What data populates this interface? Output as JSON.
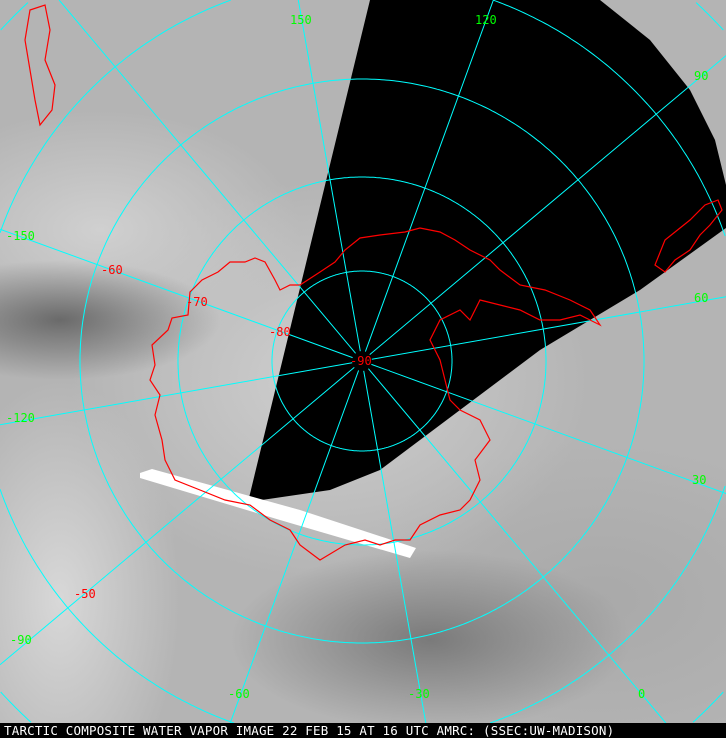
{
  "caption": "TARCTIC COMPOSITE WATER VAPOR IMAGE 22 FEB 15 AT 16 UTC AMRC: (SSEC:UW-MADISON)",
  "colors": {
    "grid": "#00ffff",
    "coast": "#ff0000",
    "longitude_labels": "#00ff00",
    "latitude_labels": "#ff0000",
    "no_data": "#000000"
  },
  "longitude_labels": [
    "150",
    "120",
    "90",
    "60",
    "30",
    "0",
    "-30",
    "-60",
    "-90",
    "-120",
    "-150"
  ],
  "latitude_labels": [
    "-50",
    "-60",
    "-70",
    "-80",
    "-90"
  ],
  "longitudes": [
    0,
    30,
    60,
    90,
    120,
    150,
    180,
    -150,
    -120,
    -90,
    -60,
    -30
  ],
  "latitudes": [
    -80,
    -70,
    -60,
    -50,
    -40
  ]
}
